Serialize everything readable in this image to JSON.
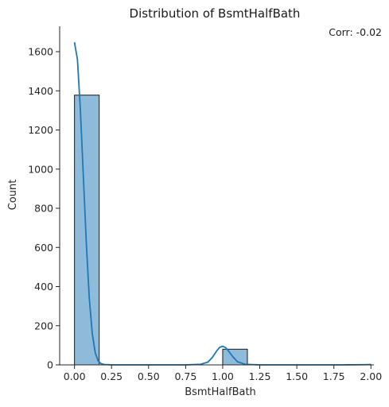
{
  "chart_data": {
    "type": "bar",
    "title": "Distribution of BsmtHalfBath",
    "xlabel": "BsmtHalfBath",
    "ylabel": "Count",
    "annotation": "Corr: -0.02",
    "xlim": [
      -0.1,
      2.02
    ],
    "ylim": [
      0,
      1730
    ],
    "x_ticks": [
      "0.00",
      "0.25",
      "0.50",
      "0.75",
      "1.00",
      "1.25",
      "1.50",
      "1.75",
      "2.00"
    ],
    "y_ticks": [
      "0",
      "200",
      "400",
      "600",
      "800",
      "1000",
      "1200",
      "1400",
      "1600"
    ],
    "bins": [
      {
        "x0": 0.0,
        "x1": 0.1667,
        "count": 1378
      },
      {
        "x0": 0.1667,
        "x1": 0.3333,
        "count": 0
      },
      {
        "x0": 0.3333,
        "x1": 0.5,
        "count": 0
      },
      {
        "x0": 0.5,
        "x1": 0.6667,
        "count": 0
      },
      {
        "x0": 0.6667,
        "x1": 0.8333,
        "count": 0
      },
      {
        "x0": 0.8333,
        "x1": 1.0,
        "count": 0
      },
      {
        "x0": 1.0,
        "x1": 1.1667,
        "count": 80
      },
      {
        "x0": 1.1667,
        "x1": 1.3333,
        "count": 0
      },
      {
        "x0": 1.3333,
        "x1": 1.5,
        "count": 0
      },
      {
        "x0": 1.5,
        "x1": 1.6667,
        "count": 0
      },
      {
        "x0": 1.6667,
        "x1": 1.8333,
        "count": 0
      },
      {
        "x0": 1.8333,
        "x1": 2.0,
        "count": 2
      }
    ],
    "kde": {
      "x": [
        0.0,
        0.02,
        0.04,
        0.06,
        0.08,
        0.1,
        0.12,
        0.14,
        0.16,
        0.18,
        0.2,
        0.25,
        0.3,
        0.5,
        0.75,
        0.85,
        0.9,
        0.93,
        0.96,
        0.98,
        1.0,
        1.02,
        1.04,
        1.07,
        1.1,
        1.15,
        1.25,
        1.5,
        1.8,
        1.95,
        2.0
      ],
      "y": [
        1648,
        1560,
        1300,
        960,
        620,
        340,
        160,
        62,
        20,
        6,
        2,
        0,
        0,
        0,
        0,
        3,
        14,
        38,
        72,
        90,
        95,
        88,
        70,
        40,
        16,
        3,
        0,
        0,
        0,
        1,
        2
      ]
    },
    "colors": {
      "bar_fill": "#8fbbdb",
      "bar_edge": "#1a1a1a",
      "kde_line": "#1f77b4"
    }
  }
}
